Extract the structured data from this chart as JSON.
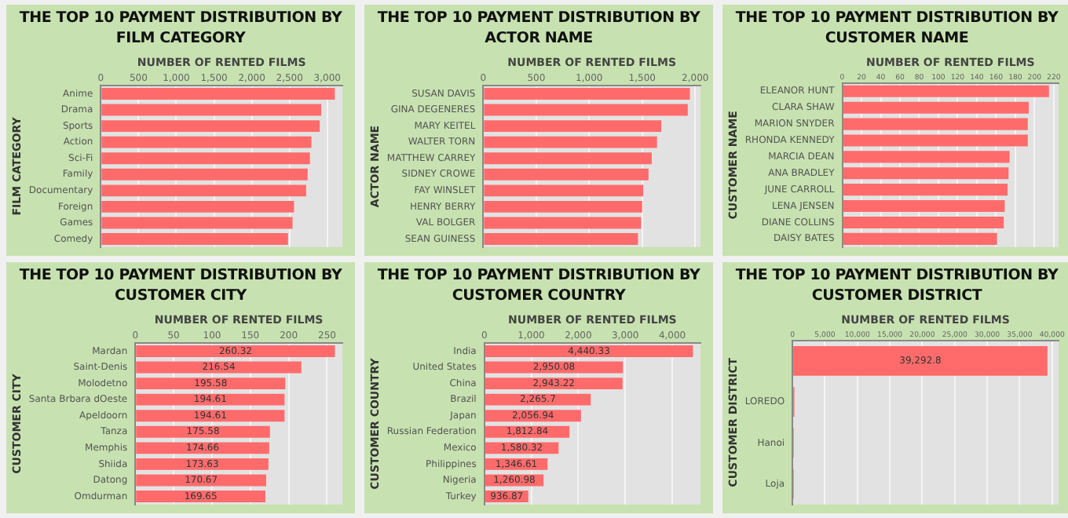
{
  "chart_data": [
    {
      "type": "bar",
      "orientation": "horizontal",
      "title": "THE TOP 10 PAYMENT DISTRIBUTION BY FILM CATEGORY",
      "xlabel": "NUMBER OF RENTED FILMS",
      "ylabel": "FILM CATEGORY",
      "categories": [
        "Anime",
        "Drama",
        "Sports",
        "Action",
        "Sci-Fi",
        "Family",
        "Documentary",
        "Foreign",
        "Games",
        "Comedy"
      ],
      "values": [
        3100,
        2920,
        2900,
        2790,
        2770,
        2740,
        2720,
        2560,
        2540,
        2480
      ],
      "color": "#ff6b6b",
      "xlim": [
        0,
        3200
      ],
      "xticks": [
        0,
        500,
        {
          "value": 1000,
          "label": "1,000"
        },
        {
          "value": 1500,
          "label": "1,500"
        },
        {
          "value": 2000,
          "label": "2,000"
        },
        {
          "value": 2500,
          "label": "2,500"
        },
        {
          "value": 3000,
          "label": "3,000"
        }
      ],
      "grid": "x"
    },
    {
      "type": "bar",
      "orientation": "horizontal",
      "title": "THE TOP 10 PAYMENT DISTRIBUTION BY ACTOR NAME",
      "xlabel": "NUMBER OF RENTED FILMS",
      "ylabel": "ACTOR NAME",
      "categories": [
        "SUSAN DAVIS",
        "GINA DEGENERES",
        "MARY KEITEL",
        "WALTER TORN",
        "MATTHEW CARREY",
        "SIDNEY CROWE",
        "FAY WINSLET",
        "HENRY BERRY",
        "VAL BOLGER",
        "SEAN GUINESS"
      ],
      "values": [
        1950,
        1930,
        1680,
        1640,
        1590,
        1560,
        1510,
        1500,
        1490,
        1460
      ],
      "color": "#ff6b6b",
      "xlim": [
        0,
        2050
      ],
      "xticks": [
        0,
        500,
        {
          "value": 1000,
          "label": "1,000"
        },
        {
          "value": 1500,
          "label": "1,500"
        },
        {
          "value": 2000,
          "label": "2,000"
        }
      ],
      "grid": "x"
    },
    {
      "type": "bar",
      "orientation": "horizontal",
      "title": "THE TOP 10 PAYMENT DISTRIBUTION BY CUSTOMER NAME",
      "xlabel": "NUMBER OF RENTED FILMS",
      "ylabel": "CUSTOMER NAME",
      "categories": [
        "ELEANOR HUNT",
        "CLARA SHAW",
        "MARION SNYDER",
        "RHONDA KENNEDY",
        "MARCIA DEAN",
        "ANA BRADLEY",
        "JUNE CARROLL",
        "LENA JENSEN",
        "DIANE COLLINS",
        "DAISY BATES"
      ],
      "values": [
        215,
        194,
        193,
        193,
        174,
        173,
        172,
        169,
        168,
        161
      ],
      "color": "#ff6b6b",
      "xlim": [
        0,
        225
      ],
      "xticks": [
        0,
        20,
        40,
        60,
        80,
        100,
        120,
        140,
        160,
        180,
        200,
        220
      ],
      "grid": "x"
    },
    {
      "type": "bar",
      "orientation": "horizontal",
      "title": "THE TOP 10 PAYMENT DISTRIBUTION BY CUSTOMER CITY",
      "xlabel": "NUMBER OF RENTED FILMS",
      "ylabel": "CUSTOMER CITY",
      "categories": [
        "Mardan",
        "Saint-Denis",
        "Molodetno",
        "Santa Brbara dOeste",
        "Apeldoorn",
        "Tanza",
        "Memphis",
        "Shiida",
        "Datong",
        "Omdurman"
      ],
      "values": [
        260.32,
        216.54,
        195.58,
        194.61,
        194.61,
        175.58,
        174.66,
        173.63,
        170.67,
        169.65
      ],
      "data_labels": true,
      "color": "#ff6b6b",
      "xlim": [
        0,
        270
      ],
      "xticks": [
        0,
        50,
        100,
        150,
        200,
        250
      ],
      "grid": "x"
    },
    {
      "type": "bar",
      "orientation": "horizontal",
      "title": "THE TOP 10 PAYMENT DISTRIBUTION BY CUSTOMER COUNTRY",
      "xlabel": "NUMBER OF RENTED FILMS",
      "ylabel": "CUSTOMER COUNTRY",
      "categories": [
        "India",
        "United States",
        "China",
        "Brazil",
        "Japan",
        "Russian Federation",
        "Mexico",
        "Philippines",
        "Nigeria",
        "Turkey"
      ],
      "values": [
        4440.33,
        2950.08,
        2943.22,
        2265.7,
        2056.94,
        1812.84,
        1580.32,
        1346.61,
        1260.98,
        936.87
      ],
      "value_labels": [
        "4,440.33",
        "2,950.08",
        "2,943.22",
        "2,265.7",
        "2,056.94",
        "1,812.84",
        "1,580.32",
        "1,346.61",
        "1,260.98",
        "936.87"
      ],
      "color": "#ff6b6b",
      "xlim": [
        0,
        4600
      ],
      "xticks": [
        0,
        {
          "value": 1000,
          "label": "1,000"
        },
        {
          "value": 2000,
          "label": "2,000"
        },
        {
          "value": 3000,
          "label": "3,000"
        },
        {
          "value": 4000,
          "label": "4,000"
        }
      ],
      "grid": "x"
    },
    {
      "type": "bar",
      "orientation": "horizontal",
      "title": "THE TOP 10 PAYMENT DISTRIBUTION BY CUSTOMER DISTRICT",
      "xlabel": "NUMBER OF RENTED FILMS",
      "ylabel": "CUSTOMER DISTRICT",
      "categories": [
        null,
        "LOREDO",
        "Hanoi",
        "Loja"
      ],
      "values": [
        39292.8,
        300,
        200,
        200
      ],
      "value_labels": [
        "39,292.8",
        null,
        null,
        null
      ],
      "color": "#ff6b6b",
      "xlim": [
        0,
        41000
      ],
      "xticks": [
        0,
        {
          "value": 5000,
          "label": "5,000"
        },
        {
          "value": 10000,
          "label": "10,000"
        },
        {
          "value": 15000,
          "label": "15,000"
        },
        {
          "value": 20000,
          "label": "20,000"
        },
        {
          "value": 25000,
          "label": "25,000"
        },
        {
          "value": 30000,
          "label": "30,000"
        },
        {
          "value": 35000,
          "label": "35,000"
        },
        {
          "value": 40000,
          "label": "40,000"
        }
      ],
      "grid": "x"
    }
  ]
}
